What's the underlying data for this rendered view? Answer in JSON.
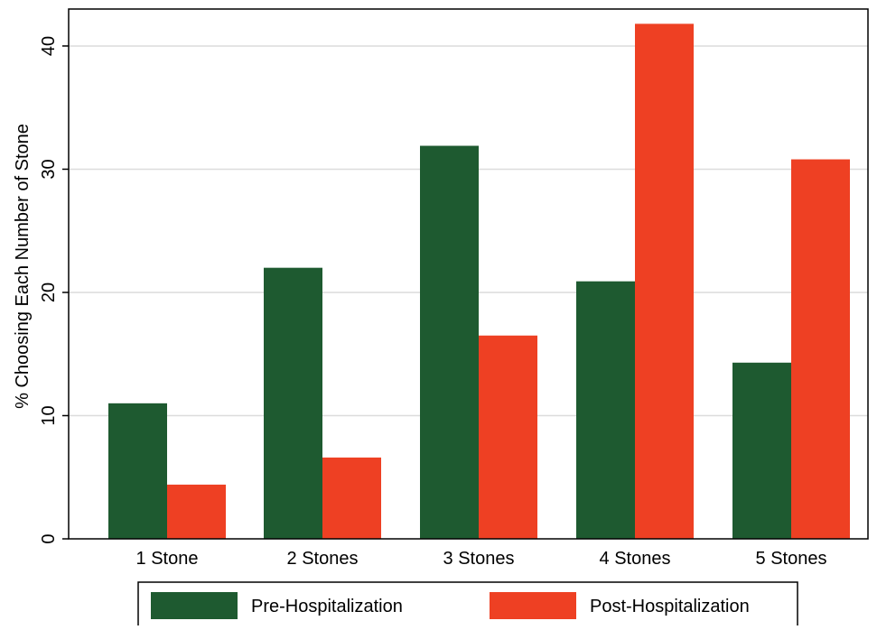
{
  "chart_data": {
    "type": "bar",
    "title": "",
    "xlabel": "",
    "ylabel": "% Choosing Each Number of Stone",
    "ylim": [
      0,
      43
    ],
    "yticks": [
      0,
      10,
      20,
      30,
      40
    ],
    "grid": true,
    "legend_position": "bottom",
    "categories": [
      "1 Stone",
      "2 Stones",
      "3 Stones",
      "4 Stones",
      "5 Stones"
    ],
    "series": [
      {
        "name": "Pre-Hospitalization",
        "color": "#1e5a30",
        "values": [
          11.0,
          22.0,
          31.9,
          20.9,
          14.3
        ]
      },
      {
        "name": "Post-Hospitalization",
        "color": "#ee4023",
        "values": [
          4.4,
          6.6,
          16.5,
          41.8,
          30.8
        ]
      }
    ]
  }
}
